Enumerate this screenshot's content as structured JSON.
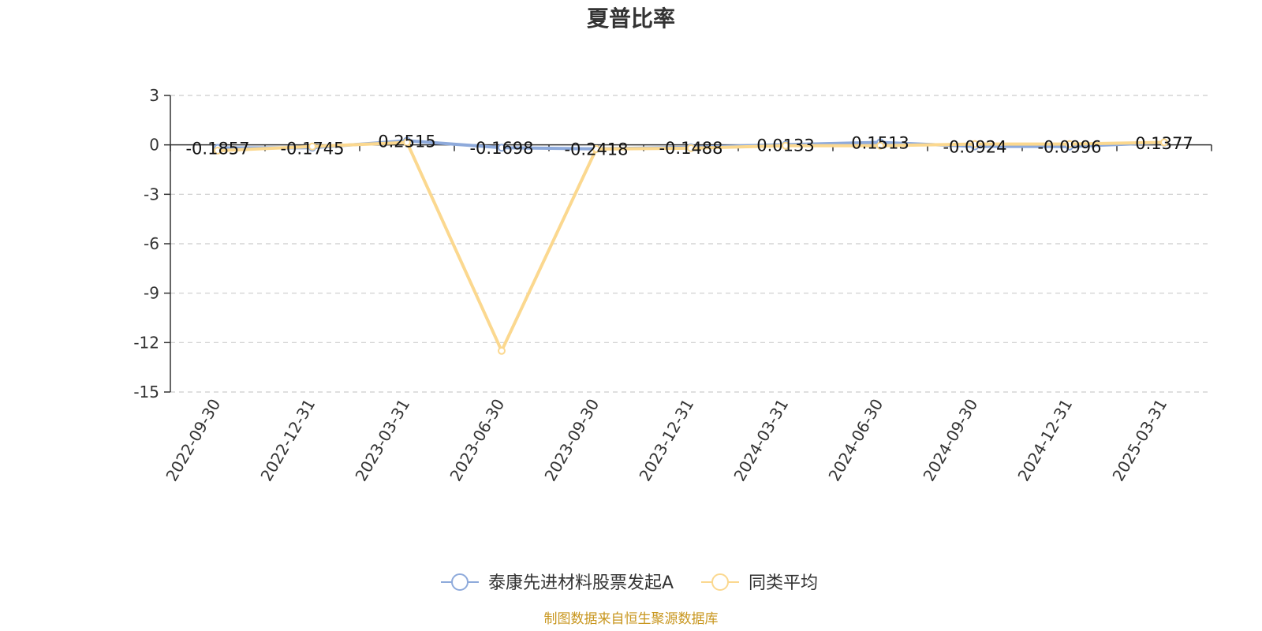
{
  "chart_data": {
    "type": "line",
    "title": "夏普比率",
    "categories": [
      "2022-09-30",
      "2022-12-31",
      "2023-03-31",
      "2023-06-30",
      "2023-09-30",
      "2023-12-31",
      "2024-03-31",
      "2024-06-30",
      "2024-09-30",
      "2024-12-31",
      "2025-03-31"
    ],
    "ylim": [
      -15,
      3
    ],
    "yticks": [
      "3",
      "0",
      "-3",
      "-6",
      "-9",
      "-12",
      "-15"
    ],
    "ytick_values": [
      3,
      0,
      -3,
      -6,
      -9,
      -12,
      -15
    ],
    "grid": true,
    "legend_position": "bottom",
    "series": [
      {
        "name": "泰康先进材料股票发起A",
        "color": "#8eaadb",
        "values": [
          -0.1857,
          -0.1745,
          0.2515,
          -0.1698,
          -0.2418,
          -0.1488,
          0.0133,
          0.1513,
          -0.0924,
          -0.0996,
          0.1377
        ],
        "labels": [
          "-0.1857",
          "-0.1745",
          "0.2515",
          "-0.1698",
          "-0.2418",
          "-0.1488",
          "0.0133",
          "0.1513",
          "-0.0924",
          "-0.0996",
          "0.1377"
        ]
      },
      {
        "name": "同类平均",
        "color": "#fbd88f",
        "values": [
          -0.35,
          -0.1,
          0.15,
          -12.5,
          -0.25,
          -0.2,
          -0.05,
          -0.05,
          0.05,
          0.05,
          0.15
        ]
      }
    ]
  },
  "source": "制图数据来自恒生聚源数据库"
}
